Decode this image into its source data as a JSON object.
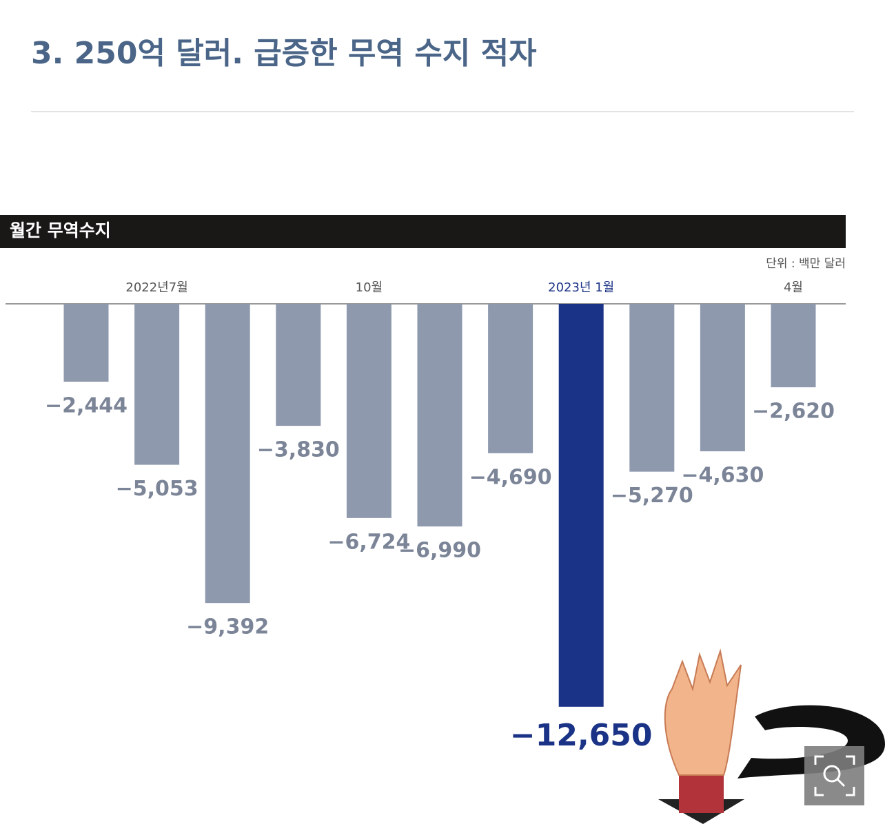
{
  "title": "3. 250억 달러. 급증한 무역 수지 적자",
  "chart_data": {
    "type": "bar",
    "title": "월간 무역수지",
    "unit": "단위 : 백만 달러",
    "categories": [
      null,
      "2022년7월",
      null,
      null,
      "10월",
      null,
      null,
      "2023년 1월",
      null,
      null,
      "4월"
    ],
    "values": [
      -2444,
      -5053,
      -9392,
      -3830,
      -6724,
      -6990,
      -4690,
      -12650,
      -5270,
      -4630,
      -2620
    ],
    "value_labels": [
      "−2,444",
      "−5,053",
      "−9,392",
      "−3,830",
      "−6,724",
      "−6,990",
      "−4,690",
      "−12,650",
      "−5,270",
      "−4,630",
      "−2,620"
    ],
    "colors": [
      "#8e99ad",
      "#8e99ad",
      "#8e99ad",
      "#8e99ad",
      "#8e99ad",
      "#8e99ad",
      "#8e99ad",
      "#1b3386",
      "#8e99ad",
      "#8e99ad",
      "#8e99ad"
    ],
    "ylim": [
      -13000,
      0
    ]
  }
}
